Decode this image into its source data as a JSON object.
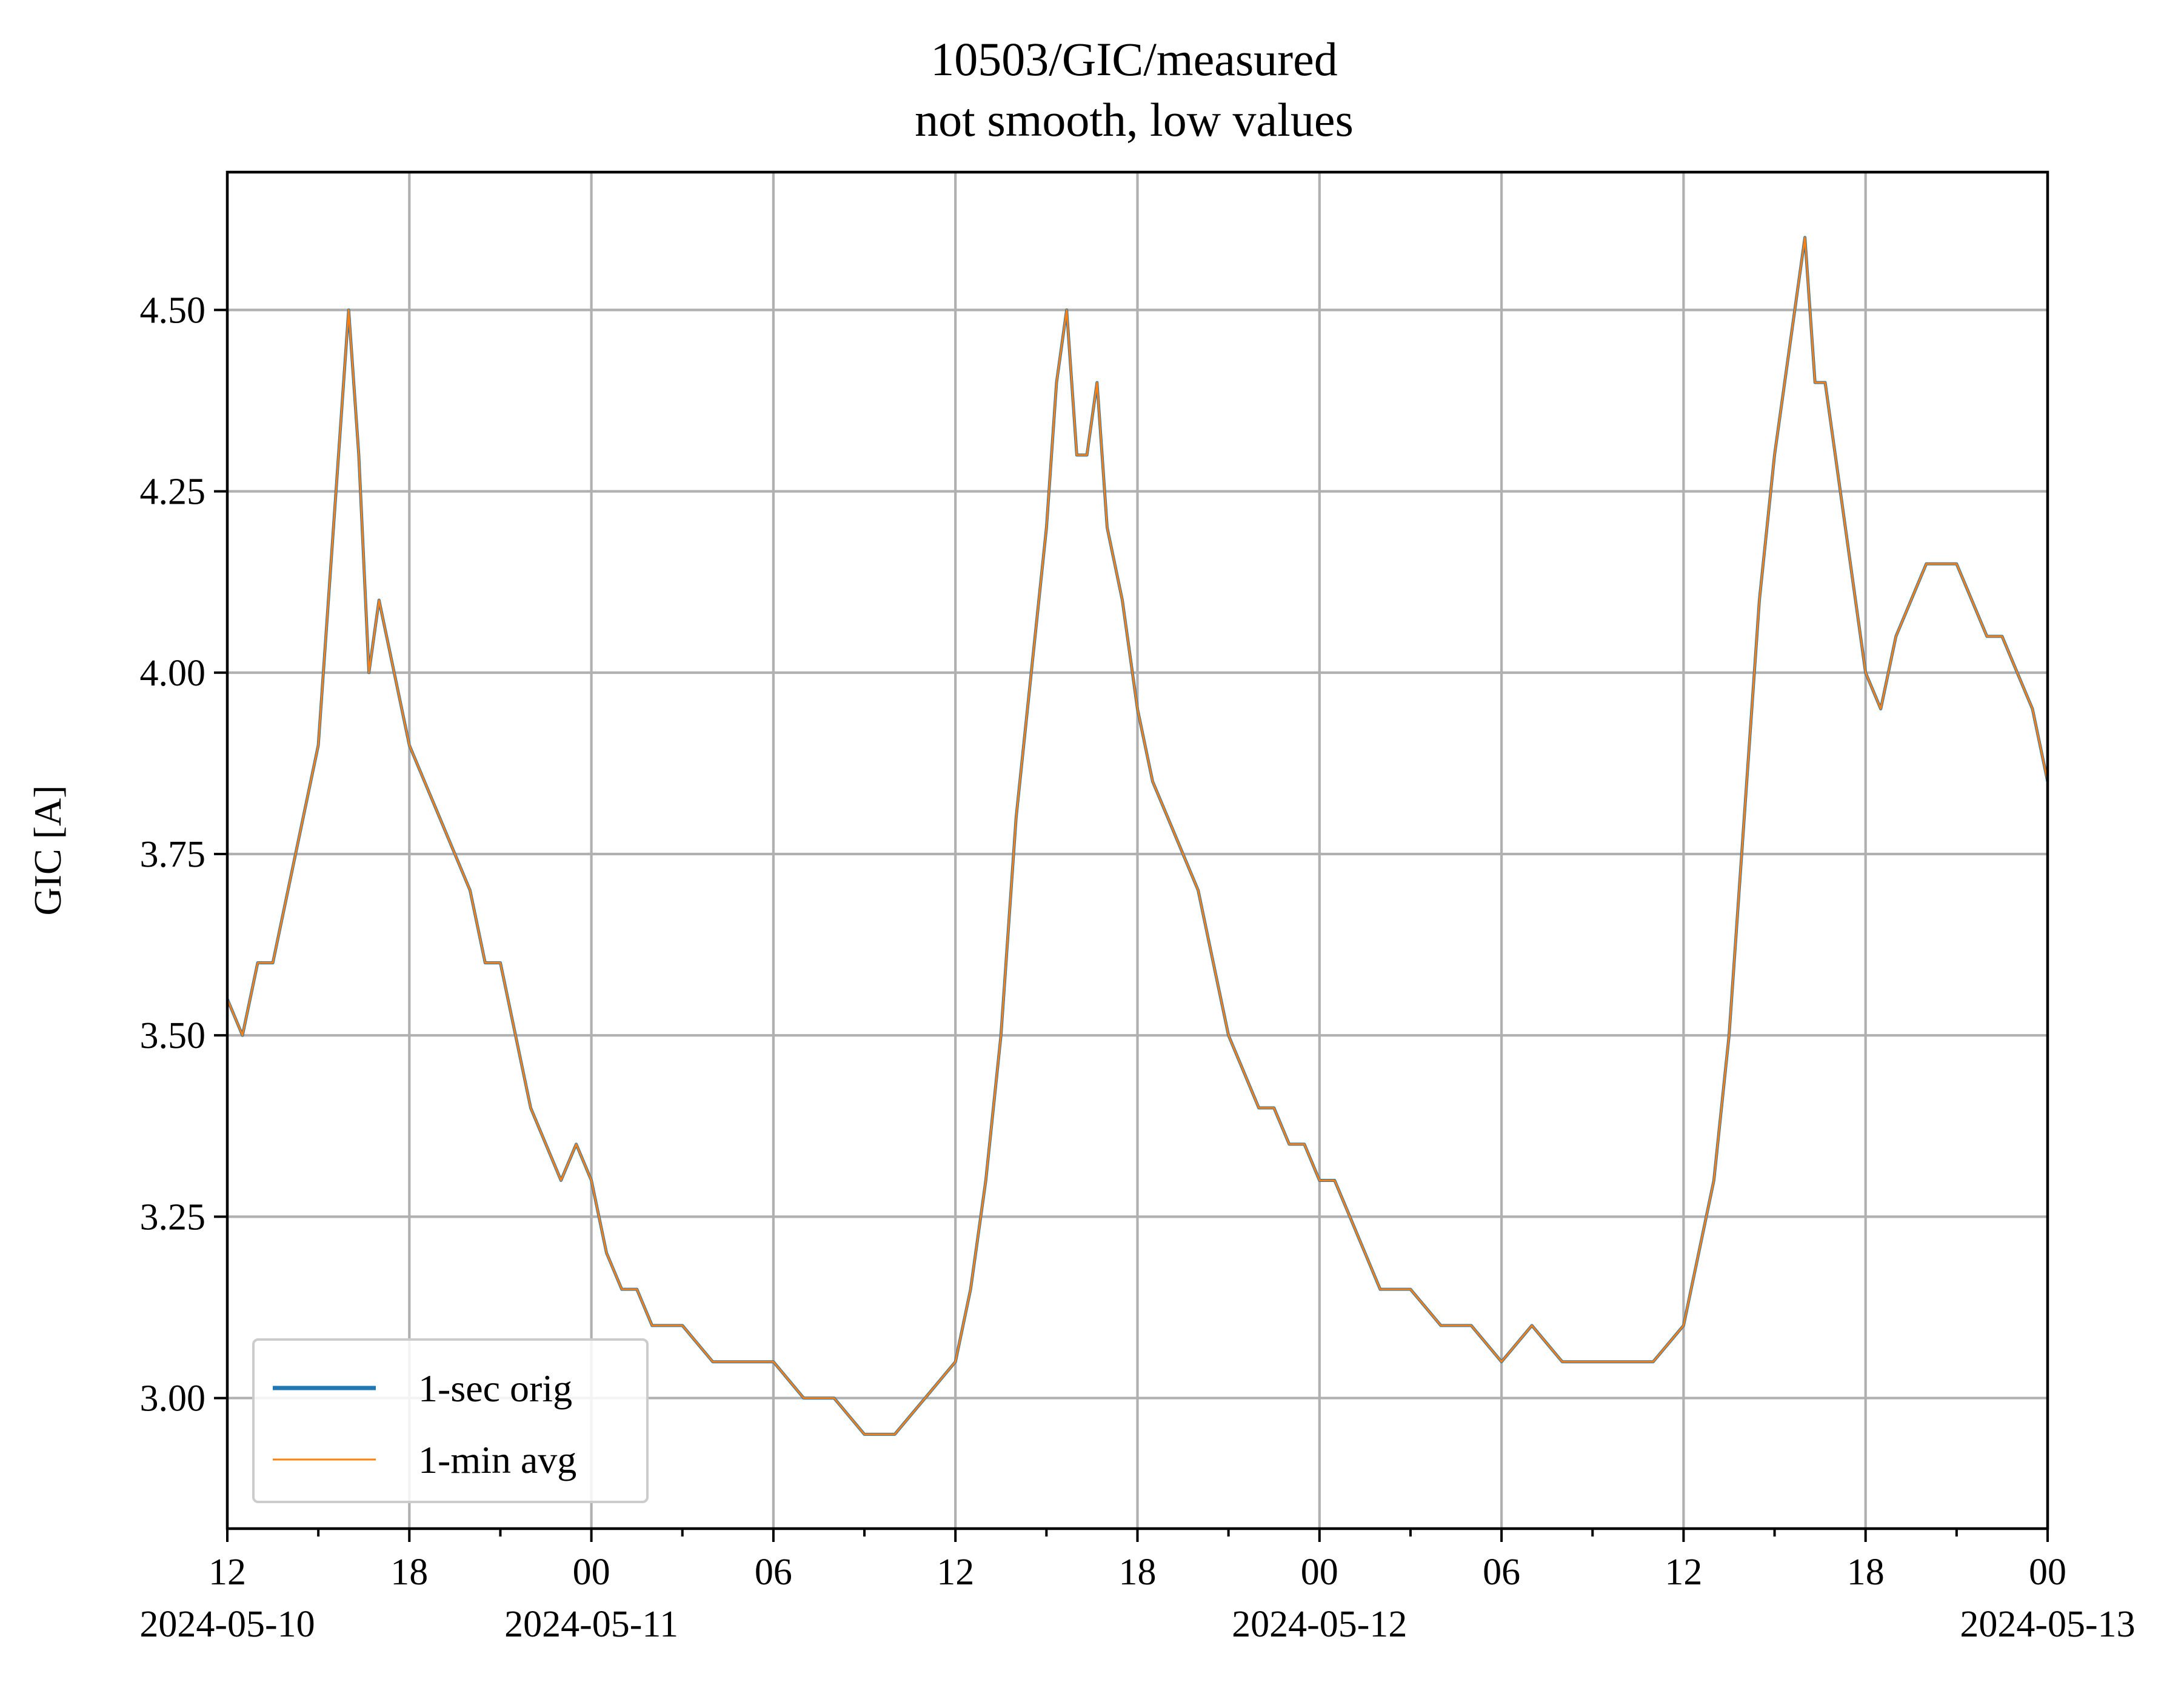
{
  "chart_data": {
    "type": "line",
    "title": "10503/GIC/measured",
    "subtitle": "not smooth, low values",
    "xlabel": "",
    "ylabel": "GIC [A]",
    "xlim": [
      "2024-05-10 12:00",
      "2024-05-13 00:00"
    ],
    "ylim": [
      2.82,
      4.69
    ],
    "grid": true,
    "legend_position": "lower-left",
    "x_ticks": [
      {
        "time": "2024-05-10 12:00",
        "label": "12",
        "date_label": "2024-05-10"
      },
      {
        "time": "2024-05-10 18:00",
        "label": "18",
        "date_label": ""
      },
      {
        "time": "2024-05-11 00:00",
        "label": "00",
        "date_label": "2024-05-11"
      },
      {
        "time": "2024-05-11 06:00",
        "label": "06",
        "date_label": ""
      },
      {
        "time": "2024-05-11 12:00",
        "label": "12",
        "date_label": ""
      },
      {
        "time": "2024-05-11 18:00",
        "label": "18",
        "date_label": ""
      },
      {
        "time": "2024-05-12 00:00",
        "label": "00",
        "date_label": "2024-05-12"
      },
      {
        "time": "2024-05-12 06:00",
        "label": "06",
        "date_label": ""
      },
      {
        "time": "2024-05-12 12:00",
        "label": "12",
        "date_label": ""
      },
      {
        "time": "2024-05-12 18:00",
        "label": "18",
        "date_label": ""
      },
      {
        "time": "2024-05-13 00:00",
        "label": "00",
        "date_label": "2024-05-13"
      }
    ],
    "x_minor_ticks": [
      "2024-05-10 15:00",
      "2024-05-10 21:00",
      "2024-05-11 03:00",
      "2024-05-11 09:00",
      "2024-05-11 15:00",
      "2024-05-11 21:00",
      "2024-05-12 03:00",
      "2024-05-12 09:00",
      "2024-05-12 15:00",
      "2024-05-12 21:00"
    ],
    "y_ticks": [
      3.0,
      3.25,
      3.5,
      3.75,
      4.0,
      4.25,
      4.5
    ],
    "y_tick_labels": [
      "3.00",
      "3.25",
      "3.50",
      "3.75",
      "4.00",
      "4.25",
      "4.50"
    ],
    "series": [
      {
        "name": "1-sec orig",
        "color": "#1f77b4",
        "x": [
          "2024-05-10 12:00",
          "2024-05-10 12:30",
          "2024-05-10 13:00",
          "2024-05-10 13:30",
          "2024-05-10 14:00",
          "2024-05-10 14:30",
          "2024-05-10 15:00",
          "2024-05-10 15:20",
          "2024-05-10 15:40",
          "2024-05-10 16:00",
          "2024-05-10 16:20",
          "2024-05-10 16:40",
          "2024-05-10 17:00",
          "2024-05-10 17:30",
          "2024-05-10 18:00",
          "2024-05-10 18:30",
          "2024-05-10 19:00",
          "2024-05-10 19:30",
          "2024-05-10 20:00",
          "2024-05-10 20:30",
          "2024-05-10 21:00",
          "2024-05-10 21:30",
          "2024-05-10 22:00",
          "2024-05-10 22:30",
          "2024-05-10 23:00",
          "2024-05-10 23:30",
          "2024-05-11 00:00",
          "2024-05-11 00:30",
          "2024-05-11 01:00",
          "2024-05-11 01:30",
          "2024-05-11 02:00",
          "2024-05-11 03:00",
          "2024-05-11 04:00",
          "2024-05-11 05:00",
          "2024-05-11 06:00",
          "2024-05-11 07:00",
          "2024-05-11 08:00",
          "2024-05-11 09:00",
          "2024-05-11 10:00",
          "2024-05-11 11:00",
          "2024-05-11 12:00",
          "2024-05-11 12:30",
          "2024-05-11 13:00",
          "2024-05-11 13:30",
          "2024-05-11 14:00",
          "2024-05-11 14:30",
          "2024-05-11 15:00",
          "2024-05-11 15:20",
          "2024-05-11 15:40",
          "2024-05-11 16:00",
          "2024-05-11 16:20",
          "2024-05-11 16:40",
          "2024-05-11 17:00",
          "2024-05-11 17:30",
          "2024-05-11 18:00",
          "2024-05-11 18:30",
          "2024-05-11 19:00",
          "2024-05-11 19:30",
          "2024-05-11 20:00",
          "2024-05-11 20:30",
          "2024-05-11 21:00",
          "2024-05-11 21:30",
          "2024-05-11 22:00",
          "2024-05-11 22:30",
          "2024-05-11 23:00",
          "2024-05-11 23:30",
          "2024-05-12 00:00",
          "2024-05-12 00:30",
          "2024-05-12 01:00",
          "2024-05-12 01:30",
          "2024-05-12 02:00",
          "2024-05-12 03:00",
          "2024-05-12 04:00",
          "2024-05-12 05:00",
          "2024-05-12 06:00",
          "2024-05-12 07:00",
          "2024-05-12 08:00",
          "2024-05-12 09:00",
          "2024-05-12 10:00",
          "2024-05-12 11:00",
          "2024-05-12 12:00",
          "2024-05-12 12:30",
          "2024-05-12 13:00",
          "2024-05-12 13:30",
          "2024-05-12 14:00",
          "2024-05-12 14:30",
          "2024-05-12 15:00",
          "2024-05-12 15:20",
          "2024-05-12 15:40",
          "2024-05-12 16:00",
          "2024-05-12 16:20",
          "2024-05-12 16:40",
          "2024-05-12 17:00",
          "2024-05-12 17:30",
          "2024-05-12 18:00",
          "2024-05-12 18:30",
          "2024-05-12 19:00",
          "2024-05-12 19:30",
          "2024-05-12 20:00",
          "2024-05-12 20:30",
          "2024-05-12 21:00",
          "2024-05-12 21:30",
          "2024-05-12 22:00",
          "2024-05-12 22:30",
          "2024-05-12 23:00",
          "2024-05-12 23:30",
          "2024-05-13 00:00"
        ],
        "values": [
          3.55,
          3.5,
          3.6,
          3.6,
          3.7,
          3.8,
          3.9,
          4.1,
          4.3,
          4.5,
          4.3,
          4.0,
          4.1,
          4.0,
          3.9,
          3.85,
          3.8,
          3.75,
          3.7,
          3.6,
          3.6,
          3.5,
          3.4,
          3.35,
          3.3,
          3.35,
          3.3,
          3.2,
          3.15,
          3.15,
          3.1,
          3.1,
          3.05,
          3.05,
          3.05,
          3.0,
          3.0,
          2.95,
          2.95,
          3.0,
          3.05,
          3.15,
          3.3,
          3.5,
          3.8,
          4.0,
          4.2,
          4.4,
          4.5,
          4.3,
          4.3,
          4.4,
          4.2,
          4.1,
          3.95,
          3.85,
          3.8,
          3.75,
          3.7,
          3.6,
          3.5,
          3.45,
          3.4,
          3.4,
          3.35,
          3.35,
          3.3,
          3.3,
          3.25,
          3.2,
          3.15,
          3.15,
          3.1,
          3.1,
          3.05,
          3.1,
          3.05,
          3.05,
          3.05,
          3.05,
          3.1,
          3.2,
          3.3,
          3.5,
          3.8,
          4.1,
          4.3,
          4.4,
          4.5,
          4.6,
          4.4,
          4.4,
          4.3,
          4.15,
          4.0,
          3.95,
          4.05,
          4.1,
          4.15,
          4.15,
          4.15,
          4.1,
          4.05,
          4.05,
          4.0,
          3.95,
          3.85
        ]
      },
      {
        "name": "1-min avg",
        "color": "#ff7f0e",
        "x": [
          "2024-05-10 12:00",
          "2024-05-10 12:30",
          "2024-05-10 13:00",
          "2024-05-10 13:30",
          "2024-05-10 14:00",
          "2024-05-10 14:30",
          "2024-05-10 15:00",
          "2024-05-10 15:20",
          "2024-05-10 15:40",
          "2024-05-10 16:00",
          "2024-05-10 16:20",
          "2024-05-10 16:40",
          "2024-05-10 17:00",
          "2024-05-10 17:30",
          "2024-05-10 18:00",
          "2024-05-10 18:30",
          "2024-05-10 19:00",
          "2024-05-10 19:30",
          "2024-05-10 20:00",
          "2024-05-10 20:30",
          "2024-05-10 21:00",
          "2024-05-10 21:30",
          "2024-05-10 22:00",
          "2024-05-10 22:30",
          "2024-05-10 23:00",
          "2024-05-10 23:30",
          "2024-05-11 00:00",
          "2024-05-11 00:30",
          "2024-05-11 01:00",
          "2024-05-11 01:30",
          "2024-05-11 02:00",
          "2024-05-11 03:00",
          "2024-05-11 04:00",
          "2024-05-11 05:00",
          "2024-05-11 06:00",
          "2024-05-11 07:00",
          "2024-05-11 08:00",
          "2024-05-11 09:00",
          "2024-05-11 10:00",
          "2024-05-11 11:00",
          "2024-05-11 12:00",
          "2024-05-11 12:30",
          "2024-05-11 13:00",
          "2024-05-11 13:30",
          "2024-05-11 14:00",
          "2024-05-11 14:30",
          "2024-05-11 15:00",
          "2024-05-11 15:20",
          "2024-05-11 15:40",
          "2024-05-11 16:00",
          "2024-05-11 16:20",
          "2024-05-11 16:40",
          "2024-05-11 17:00",
          "2024-05-11 17:30",
          "2024-05-11 18:00",
          "2024-05-11 18:30",
          "2024-05-11 19:00",
          "2024-05-11 19:30",
          "2024-05-11 20:00",
          "2024-05-11 20:30",
          "2024-05-11 21:00",
          "2024-05-11 21:30",
          "2024-05-11 22:00",
          "2024-05-11 22:30",
          "2024-05-11 23:00",
          "2024-05-11 23:30",
          "2024-05-12 00:00",
          "2024-05-12 00:30",
          "2024-05-12 01:00",
          "2024-05-12 01:30",
          "2024-05-12 02:00",
          "2024-05-12 03:00",
          "2024-05-12 04:00",
          "2024-05-12 05:00",
          "2024-05-12 06:00",
          "2024-05-12 07:00",
          "2024-05-12 08:00",
          "2024-05-12 09:00",
          "2024-05-12 10:00",
          "2024-05-12 11:00",
          "2024-05-12 12:00",
          "2024-05-12 12:30",
          "2024-05-12 13:00",
          "2024-05-12 13:30",
          "2024-05-12 14:00",
          "2024-05-12 14:30",
          "2024-05-12 15:00",
          "2024-05-12 15:20",
          "2024-05-12 15:40",
          "2024-05-12 16:00",
          "2024-05-12 16:20",
          "2024-05-12 16:40",
          "2024-05-12 17:00",
          "2024-05-12 17:30",
          "2024-05-12 18:00",
          "2024-05-12 18:30",
          "2024-05-12 19:00",
          "2024-05-12 19:30",
          "2024-05-12 20:00",
          "2024-05-12 20:30",
          "2024-05-12 21:00",
          "2024-05-12 21:30",
          "2024-05-12 22:00",
          "2024-05-12 22:30",
          "2024-05-12 23:00",
          "2024-05-12 23:30",
          "2024-05-13 00:00"
        ],
        "values": [
          3.55,
          3.5,
          3.6,
          3.6,
          3.7,
          3.8,
          3.9,
          4.1,
          4.3,
          4.5,
          4.3,
          4.0,
          4.1,
          4.0,
          3.9,
          3.85,
          3.8,
          3.75,
          3.7,
          3.6,
          3.6,
          3.5,
          3.4,
          3.35,
          3.3,
          3.35,
          3.3,
          3.2,
          3.15,
          3.15,
          3.1,
          3.1,
          3.05,
          3.05,
          3.05,
          3.0,
          3.0,
          2.95,
          2.95,
          3.0,
          3.05,
          3.15,
          3.3,
          3.5,
          3.8,
          4.0,
          4.2,
          4.4,
          4.5,
          4.3,
          4.3,
          4.4,
          4.2,
          4.1,
          3.95,
          3.85,
          3.8,
          3.75,
          3.7,
          3.6,
          3.5,
          3.45,
          3.4,
          3.4,
          3.35,
          3.35,
          3.3,
          3.3,
          3.25,
          3.2,
          3.15,
          3.15,
          3.1,
          3.1,
          3.05,
          3.1,
          3.05,
          3.05,
          3.05,
          3.05,
          3.1,
          3.2,
          3.3,
          3.5,
          3.8,
          4.1,
          4.3,
          4.4,
          4.5,
          4.6,
          4.4,
          4.4,
          4.3,
          4.15,
          4.0,
          3.95,
          4.05,
          4.1,
          4.15,
          4.15,
          4.15,
          4.1,
          4.05,
          4.05,
          4.0,
          3.95,
          3.85
        ]
      }
    ]
  }
}
